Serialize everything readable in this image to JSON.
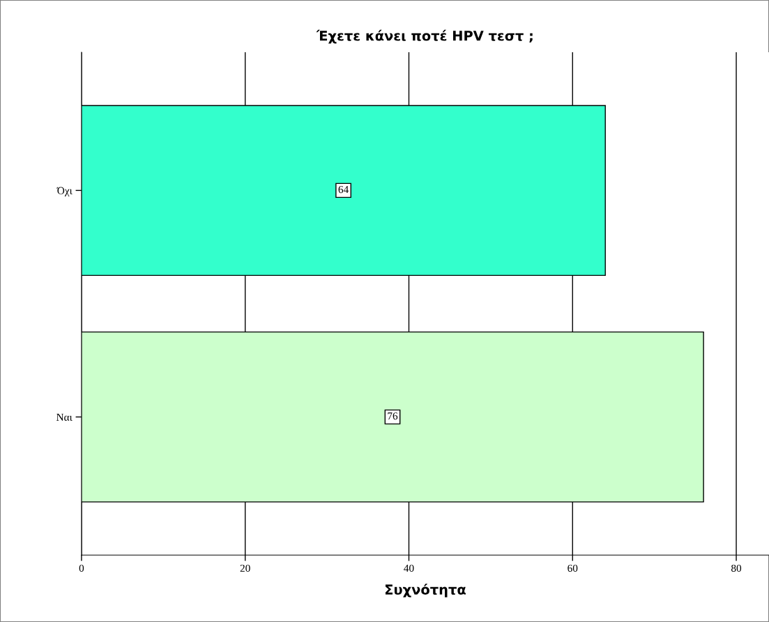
{
  "chart_data": {
    "type": "bar",
    "orientation": "horizontal",
    "title": "Έχετε κάνει ποτέ HPV τεστ ;",
    "xlabel": "Συχνότητα",
    "categories": [
      "Όχι",
      "Ναι"
    ],
    "values": [
      64,
      76
    ],
    "colors": [
      "#33ffcc",
      "#ccffcc"
    ],
    "xlim": [
      0,
      84
    ],
    "xticks": [
      0,
      20,
      40,
      60,
      80
    ],
    "grid": "x",
    "data_labels": true
  }
}
